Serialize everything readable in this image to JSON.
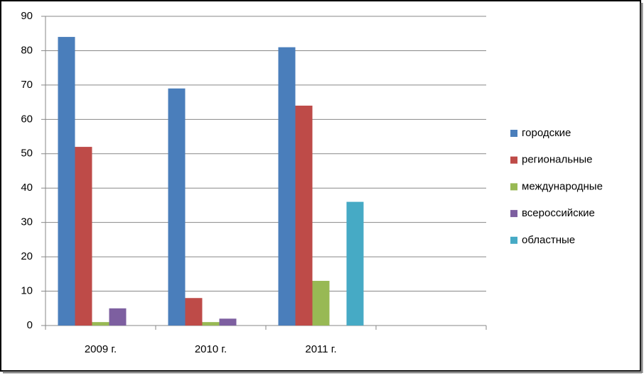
{
  "chart_data": {
    "type": "bar",
    "categories": [
      "2009 г.",
      "2010 г.",
      "2011 г.",
      null
    ],
    "series": [
      {
        "name": "городские",
        "color": "#4a7ebb",
        "values": [
          84,
          69,
          81,
          null
        ]
      },
      {
        "name": "региональные",
        "color": "#be4b48",
        "values": [
          52,
          8,
          64,
          null
        ]
      },
      {
        "name": "международные",
        "color": "#98b954",
        "values": [
          1,
          1,
          13,
          null
        ]
      },
      {
        "name": "всероссийские",
        "color": "#7d5fa0",
        "values": [
          5,
          2,
          null,
          null
        ]
      },
      {
        "name": "областные",
        "color": "#46aac5",
        "values": [
          null,
          null,
          36,
          null
        ]
      }
    ],
    "ylim": [
      0,
      90
    ],
    "yticks": [
      0,
      10,
      20,
      30,
      40,
      50,
      60,
      70,
      80,
      90
    ],
    "grid": true,
    "legend": "right"
  }
}
